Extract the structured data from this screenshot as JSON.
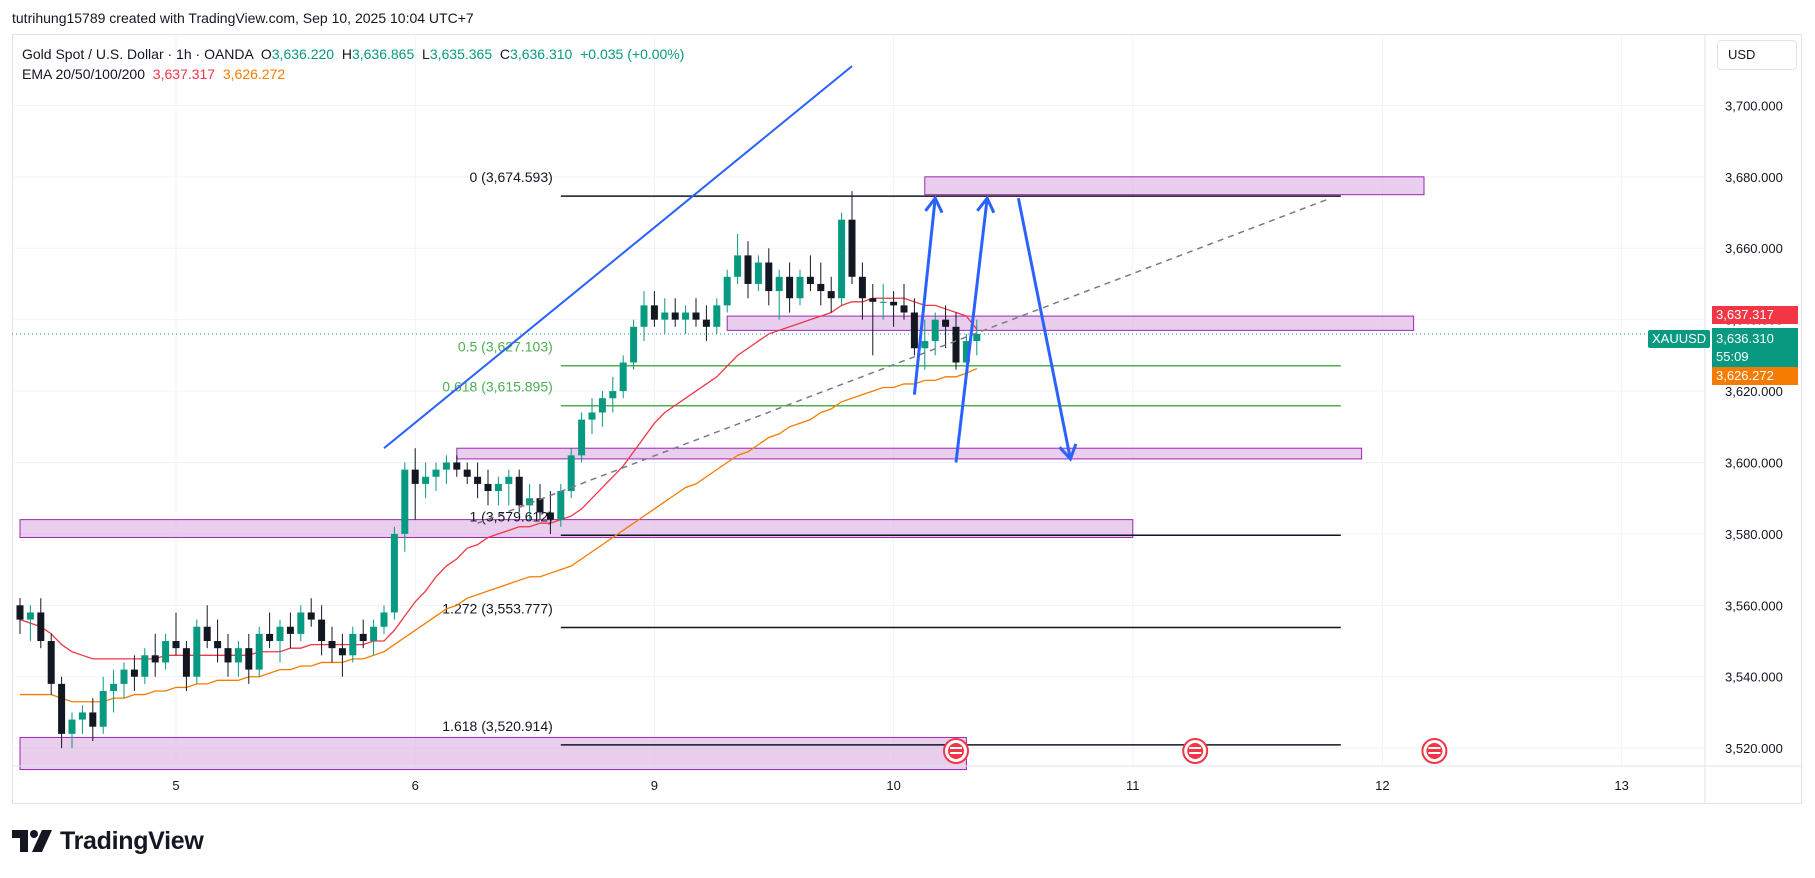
{
  "caption": "tutrihung15789 created with TradingView.com, Sep 10, 2025 10:04 UTC+7",
  "legend": {
    "symbol": "Gold Spot / U.S. Dollar · 1h · OANDA",
    "o_label": "O",
    "o": "3,636.220",
    "h_label": "H",
    "h": "3,636.865",
    "l_label": "L",
    "l": "3,635.365",
    "c_label": "C",
    "c": "3,636.310",
    "change": "+0.035 (+0.00%)",
    "ema_label": "EMA 20/50/100/200",
    "ema20": "3,637.317",
    "ema50": "3,626.272"
  },
  "currency": "USD",
  "footer_brand": "TradingView",
  "colors": {
    "up": "#089981",
    "down": "#131722",
    "ema20": "#f23645",
    "ema50": "#f57c00",
    "zone": "#e1bee7",
    "zone_border": "#9c27b0",
    "trend": "#2962ff",
    "fib_green": "#4caf50"
  },
  "price_tags": {
    "ema20": "3,637.317",
    "last": "3,636.310",
    "countdown": "55:09",
    "ema50": "3,626.272",
    "symbol_tag": "XAUUSD"
  },
  "chart_data": {
    "type": "candlestick",
    "ylim": [
      3515,
      3720
    ],
    "y_ticks": [
      3520,
      3540,
      3560,
      3580,
      3600,
      3620,
      3640,
      3660,
      3680,
      3700
    ],
    "y_tick_labels": [
      "3,520.000",
      "3,540.000",
      "3,560.000",
      "3,580.000",
      "3,600.000",
      "3,620.000",
      "3,640.000",
      "3,660.000",
      "3,680.000",
      "3,700.000"
    ],
    "x_ticks": [
      {
        "label": "5",
        "bar": 15
      },
      {
        "label": "6",
        "bar": 38
      },
      {
        "label": "9",
        "bar": 61
      },
      {
        "label": "10",
        "bar": 84
      },
      {
        "label": "11",
        "bar": 107
      },
      {
        "label": "12",
        "bar": 131
      },
      {
        "label": "13",
        "bar": 154
      }
    ],
    "bars_total": 160,
    "candles": [
      [
        3560,
        3562,
        3552,
        3556
      ],
      [
        3556,
        3560,
        3550,
        3558
      ],
      [
        3558,
        3562,
        3548,
        3550
      ],
      [
        3550,
        3552,
        3535,
        3538
      ],
      [
        3538,
        3540,
        3520,
        3524
      ],
      [
        3524,
        3530,
        3520,
        3528
      ],
      [
        3528,
        3532,
        3524,
        3530
      ],
      [
        3530,
        3534,
        3522,
        3526
      ],
      [
        3526,
        3540,
        3524,
        3536
      ],
      [
        3536,
        3542,
        3530,
        3538
      ],
      [
        3538,
        3544,
        3534,
        3542
      ],
      [
        3542,
        3546,
        3536,
        3540
      ],
      [
        3540,
        3548,
        3538,
        3546
      ],
      [
        3546,
        3552,
        3540,
        3544
      ],
      [
        3544,
        3552,
        3542,
        3550
      ],
      [
        3550,
        3558,
        3546,
        3548
      ],
      [
        3548,
        3550,
        3536,
        3540
      ],
      [
        3540,
        3556,
        3538,
        3554
      ],
      [
        3554,
        3560,
        3548,
        3550
      ],
      [
        3550,
        3556,
        3544,
        3548
      ],
      [
        3548,
        3552,
        3540,
        3544
      ],
      [
        3544,
        3550,
        3540,
        3548
      ],
      [
        3548,
        3552,
        3538,
        3542
      ],
      [
        3542,
        3554,
        3540,
        3552
      ],
      [
        3552,
        3558,
        3548,
        3550
      ],
      [
        3550,
        3556,
        3544,
        3554
      ],
      [
        3554,
        3558,
        3548,
        3552
      ],
      [
        3552,
        3560,
        3550,
        3558
      ],
      [
        3558,
        3562,
        3554,
        3556
      ],
      [
        3556,
        3560,
        3546,
        3550
      ],
      [
        3550,
        3554,
        3544,
        3548
      ],
      [
        3548,
        3552,
        3540,
        3546
      ],
      [
        3546,
        3554,
        3544,
        3552
      ],
      [
        3552,
        3556,
        3548,
        3550
      ],
      [
        3550,
        3556,
        3546,
        3554
      ],
      [
        3554,
        3560,
        3552,
        3558
      ],
      [
        3558,
        3582,
        3556,
        3580
      ],
      [
        3580,
        3600,
        3575,
        3598
      ],
      [
        3598,
        3604,
        3584,
        3594
      ],
      [
        3594,
        3600,
        3590,
        3596
      ],
      [
        3596,
        3600,
        3592,
        3598
      ],
      [
        3598,
        3602,
        3594,
        3600
      ],
      [
        3600,
        3602,
        3596,
        3598
      ],
      [
        3598,
        3600,
        3594,
        3596
      ],
      [
        3596,
        3600,
        3590,
        3594
      ],
      [
        3594,
        3598,
        3588,
        3592
      ],
      [
        3592,
        3596,
        3588,
        3594
      ],
      [
        3594,
        3598,
        3588,
        3596
      ],
      [
        3596,
        3598,
        3586,
        3588
      ],
      [
        3588,
        3594,
        3584,
        3590
      ],
      [
        3590,
        3594,
        3584,
        3586
      ],
      [
        3586,
        3592,
        3580,
        3584
      ],
      [
        3584,
        3594,
        3582,
        3592
      ],
      [
        3592,
        3604,
        3590,
        3602
      ],
      [
        3602,
        3614,
        3600,
        3612
      ],
      [
        3612,
        3618,
        3608,
        3614
      ],
      [
        3614,
        3620,
        3610,
        3618
      ],
      [
        3618,
        3624,
        3614,
        3620
      ],
      [
        3620,
        3630,
        3618,
        3628
      ],
      [
        3628,
        3640,
        3626,
        3638
      ],
      [
        3638,
        3648,
        3634,
        3644
      ],
      [
        3644,
        3648,
        3638,
        3640
      ],
      [
        3640,
        3646,
        3636,
        3642
      ],
      [
        3642,
        3646,
        3638,
        3640
      ],
      [
        3640,
        3644,
        3636,
        3642
      ],
      [
        3642,
        3646,
        3638,
        3640
      ],
      [
        3640,
        3644,
        3634,
        3638
      ],
      [
        3638,
        3646,
        3636,
        3644
      ],
      [
        3644,
        3654,
        3642,
        3652
      ],
      [
        3652,
        3664,
        3650,
        3658
      ],
      [
        3658,
        3662,
        3646,
        3650
      ],
      [
        3650,
        3658,
        3648,
        3656
      ],
      [
        3656,
        3660,
        3644,
        3648
      ],
      [
        3648,
        3654,
        3640,
        3652
      ],
      [
        3652,
        3656,
        3642,
        3646
      ],
      [
        3646,
        3654,
        3644,
        3652
      ],
      [
        3652,
        3658,
        3648,
        3650
      ],
      [
        3650,
        3656,
        3644,
        3648
      ],
      [
        3648,
        3652,
        3642,
        3646
      ],
      [
        3646,
        3670,
        3644,
        3668
      ],
      [
        3668,
        3676,
        3650,
        3652
      ],
      [
        3652,
        3656,
        3640,
        3646
      ],
      [
        3646,
        3650,
        3630,
        3645
      ],
      [
        3645,
        3650,
        3640,
        3645
      ],
      [
        3645,
        3648,
        3638,
        3644
      ],
      [
        3644,
        3650,
        3640,
        3642
      ],
      [
        3642,
        3646,
        3630,
        3632
      ],
      [
        3632,
        3640,
        3626,
        3634
      ],
      [
        3634,
        3642,
        3630,
        3640
      ],
      [
        3640,
        3644,
        3632,
        3638
      ],
      [
        3638,
        3642,
        3626,
        3628
      ],
      [
        3628,
        3636,
        3622,
        3634
      ],
      [
        3634,
        3640,
        3630,
        3636
      ]
    ],
    "ema20": [
      3556,
      3555,
      3554,
      3552,
      3549,
      3547,
      3546,
      3545,
      3545,
      3545,
      3545,
      3545,
      3545,
      3545,
      3546,
      3546,
      3546,
      3546,
      3546,
      3546,
      3546,
      3546,
      3546,
      3547,
      3547,
      3547,
      3548,
      3548,
      3549,
      3549,
      3549,
      3549,
      3549,
      3549,
      3550,
      3550,
      3553,
      3557,
      3561,
      3564,
      3568,
      3571,
      3573,
      3576,
      3577,
      3579,
      3580,
      3581,
      3582,
      3582,
      3583,
      3583,
      3584,
      3585,
      3587,
      3590,
      3593,
      3596,
      3599,
      3603,
      3607,
      3611,
      3614,
      3616,
      3618,
      3620,
      3622,
      3624,
      3627,
      3630,
      3632,
      3634,
      3636,
      3637,
      3638,
      3639,
      3640,
      3641,
      3642,
      3644,
      3645,
      3645,
      3646,
      3646,
      3646,
      3646,
      3645,
      3644,
      3644,
      3643,
      3642,
      3641,
      3637.3
    ],
    "ema50": [
      3535,
      3535,
      3535,
      3535,
      3534,
      3533,
      3533,
      3533,
      3533,
      3534,
      3534,
      3535,
      3535,
      3536,
      3536,
      3537,
      3537,
      3538,
      3538,
      3539,
      3539,
      3539,
      3540,
      3540,
      3541,
      3542,
      3542,
      3543,
      3543,
      3544,
      3544,
      3544,
      3545,
      3545,
      3546,
      3547,
      3549,
      3551,
      3553,
      3555,
      3557,
      3559,
      3560,
      3562,
      3563,
      3564,
      3565,
      3566,
      3567,
      3568,
      3568,
      3569,
      3570,
      3571,
      3573,
      3575,
      3577,
      3579,
      3581,
      3583,
      3585,
      3587,
      3589,
      3591,
      3593,
      3594,
      3596,
      3598,
      3600,
      3602,
      3603,
      3605,
      3607,
      3608,
      3610,
      3611,
      3612,
      3614,
      3615,
      3617,
      3618,
      3619,
      3620,
      3621,
      3621,
      3622,
      3622,
      3623,
      3623,
      3624,
      3624,
      3625,
      3626.3
    ],
    "zones": [
      {
        "bar_from": 87,
        "bar_to": 135,
        "y_top": 3680,
        "y_bottom": 3675
      },
      {
        "bar_from": 68,
        "bar_to": 134,
        "y_top": 3641,
        "y_bottom": 3637
      },
      {
        "bar_from": 42,
        "bar_to": 129,
        "y_top": 3604,
        "y_bottom": 3601
      },
      {
        "bar_from": 0,
        "bar_to": 107,
        "y_top": 3584,
        "y_bottom": 3579
      },
      {
        "bar_from": 0,
        "bar_to": 91,
        "y_top": 3523,
        "y_bottom": 3514
      }
    ],
    "fib_levels": [
      {
        "label": "0 (3,674.593)",
        "value": 3674.593,
        "color": "#131722"
      },
      {
        "label": "0.5 (3,627.103)",
        "value": 3627.103,
        "color": "#4caf50"
      },
      {
        "label": "0.618 (3,615.895)",
        "value": 3615.895,
        "color": "#4caf50"
      },
      {
        "label": "1 (3,579.612)",
        "value": 3579.612,
        "color": "#131722"
      },
      {
        "label": "1.272 (3,553.777)",
        "value": 3553.777,
        "color": "#131722"
      },
      {
        "label": "1.618 (3,520.914)",
        "value": 3520.914,
        "color": "#131722"
      }
    ],
    "fib_bar_from": 52,
    "fib_bar_to": 127
  }
}
